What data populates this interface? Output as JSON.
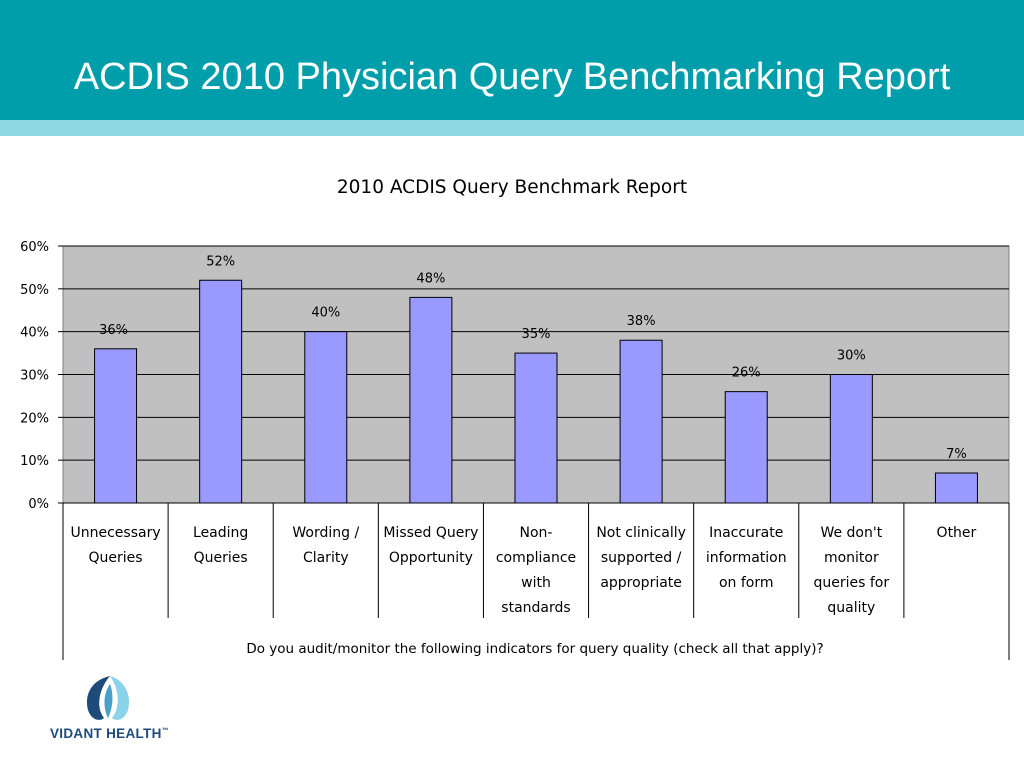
{
  "slide": {
    "title": "ACDIS 2010 Physician Query Benchmarking Report"
  },
  "colors": {
    "header": "#009eaa",
    "stripe": "#8dd8e0",
    "plot_bg": "#c0c0c0",
    "bar_fill": "#9999ff",
    "logo_dark": "#1f4b7a",
    "logo_light": "#8ad3ea"
  },
  "chart_data": {
    "type": "bar",
    "title": "2010 ACDIS Query Benchmark Report",
    "xlabel": "Do you audit/monitor the following indicators for query quality (check all that apply)?",
    "ylabel": "",
    "ylim": [
      0,
      60
    ],
    "yticks": [
      "0%",
      "10%",
      "20%",
      "30%",
      "40%",
      "50%",
      "60%"
    ],
    "grid": true,
    "legend": "none",
    "categories": [
      [
        "Unnecessary",
        "Queries"
      ],
      [
        "Leading",
        "Queries"
      ],
      [
        "Wording /",
        "Clarity"
      ],
      [
        "Missed Query",
        "Opportunity"
      ],
      [
        "Non-",
        "compliance",
        "with",
        "standards"
      ],
      [
        "Not clinically",
        "supported /",
        "appropriate"
      ],
      [
        "Inaccurate",
        "information",
        "on form"
      ],
      [
        "We don't",
        "monitor",
        "queries for",
        "quality"
      ],
      [
        "Other"
      ]
    ],
    "values": [
      36,
      52,
      40,
      48,
      35,
      38,
      26,
      30,
      7
    ],
    "data_labels": [
      "36%",
      "52%",
      "40%",
      "48%",
      "35%",
      "38%",
      "26%",
      "30%",
      "7%"
    ]
  },
  "logo": {
    "text": "VIDANT HEALTH",
    "tm": "™"
  }
}
